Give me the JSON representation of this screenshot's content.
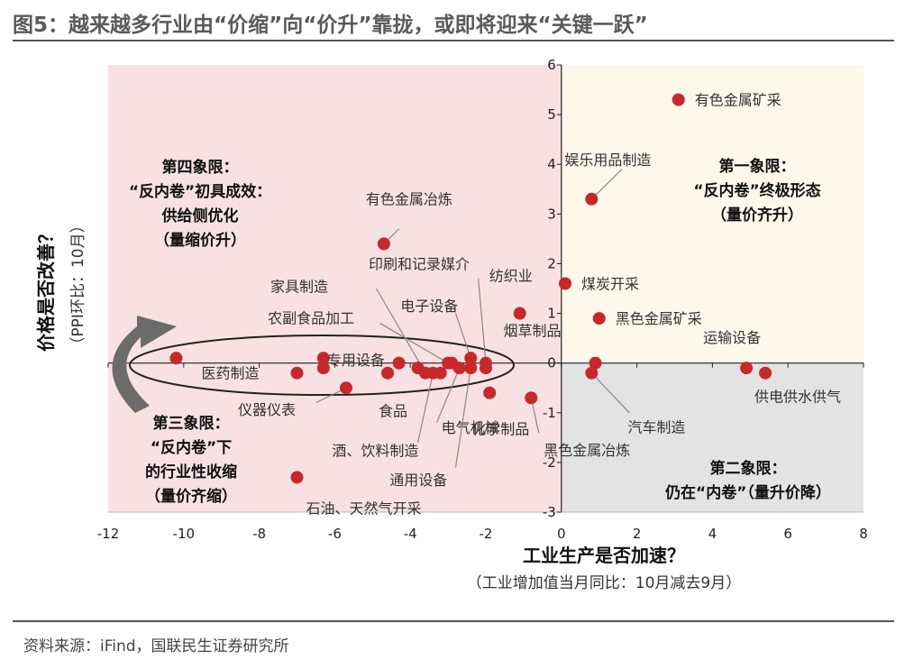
{
  "title": "图5：越来越多行业由“价缩”向“价升”靠拢，或即将迎来“关键一跃”",
  "source": "资料来源：iFind，国联民生证券研究所",
  "chart_data": {
    "type": "scatter",
    "xlabel": "工业生产是否加速？",
    "xlabel_sub": "（工业增加值当月同比：10月减去9月）",
    "ylabel": "价格是否改善？",
    "ylabel_sub": "（PPI环比：10月）",
    "xlim": [
      -12,
      8
    ],
    "ylim": [
      -3,
      6
    ],
    "xticks": [
      -12,
      -10,
      -8,
      -6,
      -4,
      -2,
      0,
      2,
      4,
      6,
      8
    ],
    "yticks": [
      -3,
      -2,
      -1,
      0,
      1,
      2,
      3,
      4,
      5,
      6
    ],
    "colors": {
      "point": "#c8282a",
      "q1": "#fdf8ea",
      "q2": "#e3e3e3",
      "q34": "#f7e1e2",
      "arrow": "#6b6b6b",
      "leader": "#888888"
    },
    "quadrants": [
      {
        "id": "q1",
        "lines": [
          "第一象限：",
          "“反内卷”终极形态",
          "（量价齐升）"
        ]
      },
      {
        "id": "q2",
        "lines": [
          "第二象限：",
          "仍在“内卷”（量升价降）"
        ]
      },
      {
        "id": "q3",
        "lines": [
          "第三象限：",
          "“反内卷”下",
          "的行业性收缩",
          "（量价齐缩）"
        ]
      },
      {
        "id": "q4",
        "lines": [
          "第四象限：",
          "“反内卷”初具成效：",
          "供给侧优化",
          "（量缩价升）"
        ]
      }
    ],
    "points": [
      {
        "name": "有色金属矿采",
        "x": 3.1,
        "y": 5.3
      },
      {
        "name": "娱乐用品制造",
        "x": 0.8,
        "y": 3.3
      },
      {
        "name": "煤炭开采",
        "x": 0.1,
        "y": 1.6
      },
      {
        "name": "黑色金属矿采",
        "x": 1.0,
        "y": 0.9
      },
      {
        "name": "运输设备",
        "x": 4.9,
        "y": -0.1
      },
      {
        "name": "供电供水供气",
        "x": 5.4,
        "y": -0.2
      },
      {
        "name": "汽车制造",
        "x": 0.8,
        "y": -0.2
      },
      {
        "name": "烟草制品",
        "x": 0.9,
        "y": 0.0
      },
      {
        "name": "黑色金属冶炼",
        "x": -0.8,
        "y": -0.7
      },
      {
        "name": "纺织业",
        "x": -1.1,
        "y": 1.0
      },
      {
        "name": "有色金属冶炼",
        "x": -4.7,
        "y": 2.4
      },
      {
        "name": "印刷和记录媒介",
        "x": -2.0,
        "y": 0.0
      },
      {
        "name": "家具制造",
        "x": -3.6,
        "y": -0.2
      },
      {
        "name": "电子设备",
        "x": -2.4,
        "y": 0.1
      },
      {
        "name": "农副食品加工",
        "x": -3.0,
        "y": 0.0
      },
      {
        "name": "化学制品",
        "x": -1.9,
        "y": -0.6
      },
      {
        "name": "医药制造",
        "x": -7.0,
        "y": -0.2
      },
      {
        "name": "专用设备",
        "x": -6.3,
        "y": 0.1
      },
      {
        "name": "仪器仪表",
        "x": -5.7,
        "y": -0.5
      },
      {
        "name": "食品",
        "x": -4.6,
        "y": -0.2
      },
      {
        "name": "酒、饮料制造",
        "x": -3.4,
        "y": -0.2
      },
      {
        "name": "电气机械",
        "x": -2.7,
        "y": -0.1
      },
      {
        "name": "通用设备",
        "x": -2.4,
        "y": -0.1
      },
      {
        "name": "石油、天然气开采",
        "x": -7.0,
        "y": -2.3
      },
      {
        "name": "",
        "x": -10.2,
        "y": 0.1
      },
      {
        "name": "",
        "x": -6.3,
        "y": -0.1
      },
      {
        "name": "",
        "x": -4.3,
        "y": 0.0
      },
      {
        "name": "",
        "x": -3.8,
        "y": -0.1
      },
      {
        "name": "",
        "x": -3.2,
        "y": -0.2
      },
      {
        "name": "",
        "x": -2.9,
        "y": 0.0
      },
      {
        "name": "",
        "x": -2.0,
        "y": -0.1
      }
    ]
  }
}
